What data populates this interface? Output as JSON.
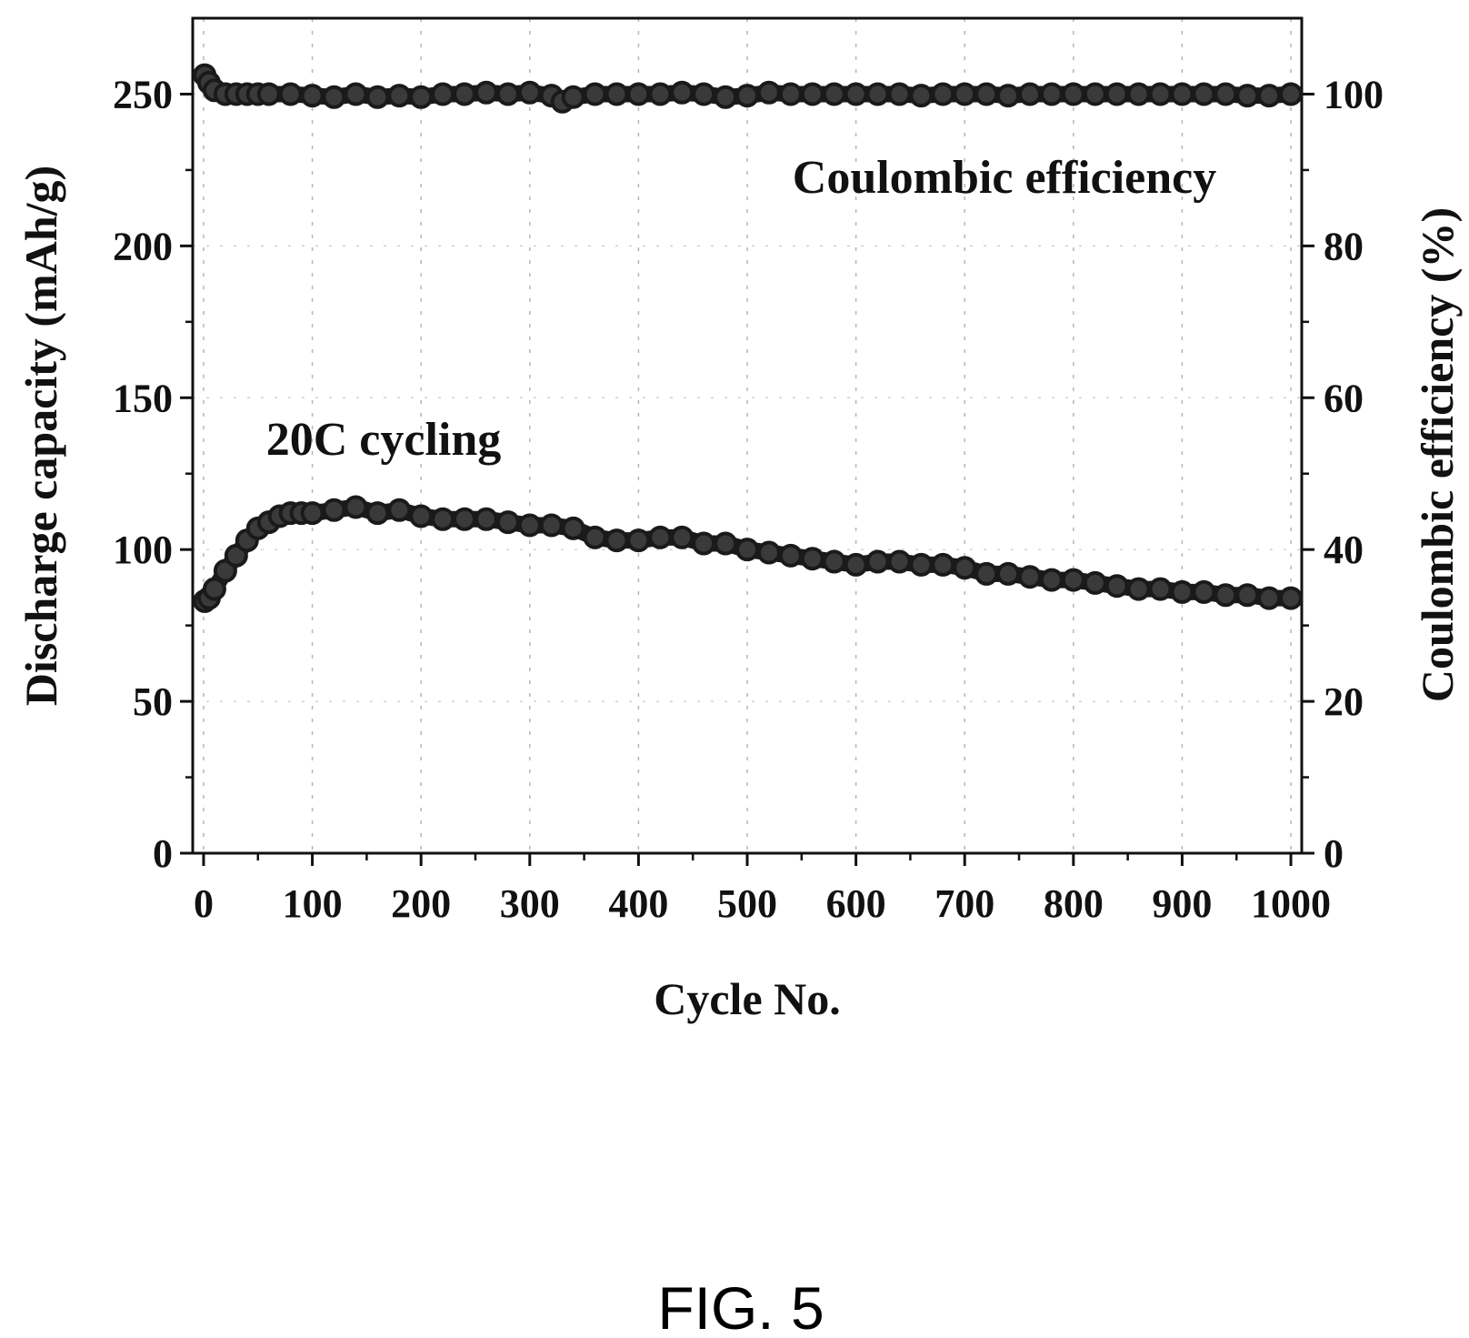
{
  "figure_label": "FIG. 5",
  "chart_data": {
    "type": "scatter",
    "xlabel": "Cycle No.",
    "ylabel_left": "Discharge capacity (mAh/g)",
    "ylabel_right": "Coulombic efficiency (%)",
    "xlim": [
      -10,
      1010
    ],
    "ylim_left": [
      0,
      275
    ],
    "ylim_right": [
      0,
      110
    ],
    "x_ticks": [
      "0",
      "100",
      "200",
      "300",
      "400",
      "500",
      "600",
      "700",
      "800",
      "900",
      "1000"
    ],
    "y_ticks_left": [
      "0",
      "50",
      "100",
      "150",
      "200",
      "250"
    ],
    "y_ticks_right": [
      "0",
      "20",
      "40",
      "60",
      "80",
      "100"
    ],
    "grid": true,
    "annotations": [
      "Coulombic efficiency",
      "20C cycling"
    ],
    "series": [
      {
        "axis": "left",
        "color": "#1a1a1a",
        "x": [
          1,
          5,
          10,
          20,
          30,
          40,
          50,
          60,
          70,
          80,
          90,
          100,
          120,
          140,
          160,
          180,
          200,
          220,
          240,
          260,
          280,
          300,
          320,
          340,
          360,
          380,
          400,
          420,
          440,
          460,
          480,
          500,
          520,
          540,
          560,
          580,
          600,
          620,
          640,
          660,
          680,
          700,
          720,
          740,
          760,
          780,
          800,
          820,
          840,
          860,
          880,
          900,
          920,
          940,
          960,
          980,
          1000
        ],
        "values": [
          83,
          84,
          87,
          93,
          98,
          103,
          107,
          109,
          111,
          112,
          112,
          112,
          113,
          114,
          112,
          113,
          111,
          110,
          110,
          110,
          109,
          108,
          108,
          107,
          104,
          103,
          103,
          104,
          104,
          102,
          102,
          100,
          99,
          98,
          97,
          96,
          95,
          96,
          96,
          95,
          95,
          94,
          92,
          92,
          91,
          90,
          90,
          89,
          88,
          87,
          87,
          86,
          86,
          85,
          85,
          84,
          84
        ]
      },
      {
        "axis": "right",
        "color": "#1a1a1a",
        "x": [
          1,
          5,
          10,
          20,
          30,
          40,
          50,
          60,
          80,
          100,
          120,
          140,
          160,
          180,
          200,
          220,
          240,
          260,
          280,
          300,
          320,
          330,
          340,
          360,
          380,
          400,
          420,
          440,
          460,
          480,
          500,
          520,
          540,
          560,
          580,
          600,
          620,
          640,
          660,
          680,
          700,
          720,
          740,
          760,
          780,
          800,
          820,
          840,
          860,
          880,
          900,
          920,
          940,
          960,
          980,
          1000
        ],
        "values": [
          102.5,
          101.5,
          100.5,
          100,
          100,
          100,
          100,
          100,
          100,
          99.8,
          99.6,
          100,
          99.6,
          99.8,
          99.6,
          100,
          100,
          100.2,
          100,
          100.2,
          99.8,
          99,
          99.6,
          100,
          100,
          100,
          100,
          100.2,
          100,
          99.6,
          99.8,
          100.2,
          100,
          100,
          100,
          100,
          100,
          100,
          99.8,
          100,
          100,
          100,
          99.8,
          100,
          100,
          100,
          100,
          100,
          100,
          100,
          100,
          100,
          100,
          99.8,
          99.8,
          100
        ]
      }
    ]
  }
}
